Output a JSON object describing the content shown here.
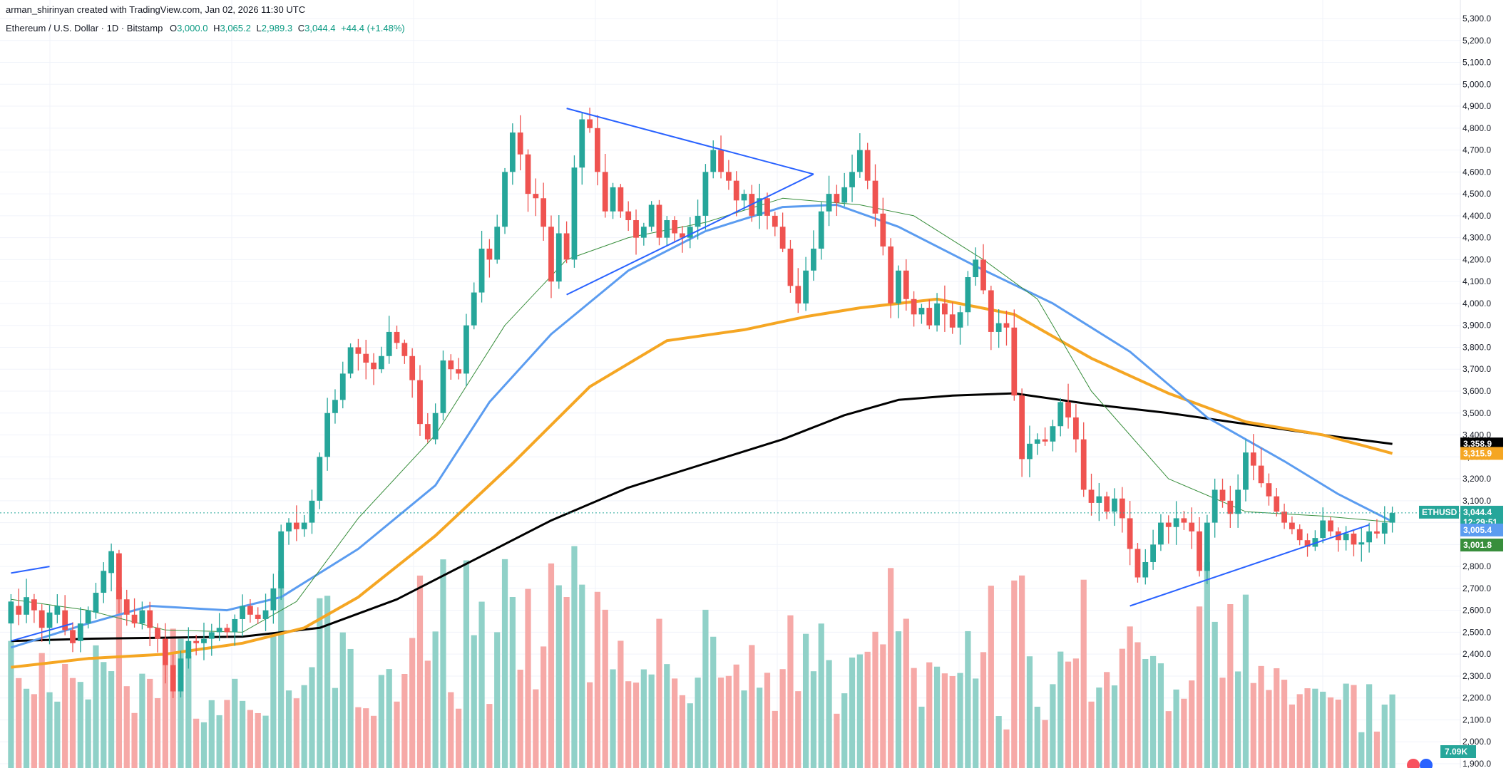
{
  "header": {
    "attribution": "arman_shirinyan created with TradingView.com, Jan 02, 2026 11:30 UTC",
    "symbol_line": "Ethereum / U.S. Dollar · 1D · Bitstamp",
    "o_label": "O",
    "o_value": "3,000.0",
    "h_label": "H",
    "h_value": "3,065.2",
    "l_label": "L",
    "l_value": "2,989.3",
    "c_label": "C",
    "c_value": "3,044.4",
    "change": "+44.4 (+1.48%)"
  },
  "colors": {
    "up": "#26a69a",
    "down": "#ef5350",
    "ma_fast": "#388e3c",
    "ma_50": "#5b9cf0",
    "ma_100": "#f5a623",
    "ma_200": "#000000",
    "trendline": "#2962ff",
    "grid": "#f0f3fa",
    "vol_up": "#90d1c8",
    "vol_down": "#f6a9a7"
  },
  "chart_data": {
    "type": "candlestick",
    "title": "Ethereum / U.S. Dollar · 1D · Bitstamp",
    "ylim": [
      1900,
      5300
    ],
    "y_ticks": [
      "1,900.0",
      "2,000.0",
      "2,100.0",
      "2,200.0",
      "2,300.0",
      "2,400.0",
      "2,500.0",
      "2,600.0",
      "2,700.0",
      "2,800.0",
      "2,900.0",
      "3,000.0",
      "3,100.0",
      "3,200.0",
      "3,300.0",
      "3,400.0",
      "3,500.0",
      "3,600.0",
      "3,700.0",
      "3,800.0",
      "3,900.0",
      "4,000.0",
      "4,100.0",
      "4,200.0",
      "4,300.0",
      "4,400.0",
      "4,500.0",
      "4,600.0",
      "4,700.0",
      "4,800.0",
      "4,900.0",
      "5,000.0",
      "5,100.0",
      "5,200.0",
      "5,300.0"
    ],
    "price_tags": [
      {
        "name": "ma-200-tag",
        "value": 3358.9,
        "label": "3,358.9",
        "color": "#000000"
      },
      {
        "name": "ma-100-tag",
        "value": 3315.9,
        "label": "3,315.9",
        "color": "#f5a623"
      },
      {
        "name": "last-price-tag",
        "value": 3044.4,
        "label": "ETHUSD",
        "sublabel": "3,044.4",
        "countdown": "12:29:51",
        "color": "#26a69a"
      },
      {
        "name": "ma-50-tag",
        "value": 3005.4,
        "label": "3,005.4",
        "color": "#5b9cf0"
      },
      {
        "name": "ma-fast-tag",
        "value": 3001.8,
        "label": "3,001.8",
        "color": "#388e3c"
      }
    ],
    "volume_label": "7.09K",
    "last_price": 3044.4,
    "ohlc_path": [
      [
        2540,
        2640
      ],
      [
        2620,
        2580
      ],
      [
        2580,
        2660
      ],
      [
        2650,
        2600
      ],
      [
        2600,
        2520
      ],
      [
        2520,
        2590
      ],
      [
        2580,
        2620
      ],
      [
        2600,
        2510
      ],
      [
        2510,
        2450
      ],
      [
        2460,
        2540
      ],
      [
        2540,
        2600
      ],
      [
        2590,
        2680
      ],
      [
        2680,
        2780
      ],
      [
        2770,
        2870
      ],
      [
        2860,
        2650
      ],
      [
        2650,
        2580
      ],
      [
        2580,
        2540
      ],
      [
        2540,
        2600
      ],
      [
        2600,
        2520
      ],
      [
        2520,
        2470
      ],
      [
        2470,
        2350
      ],
      [
        2350,
        2230
      ],
      [
        2230,
        2380
      ],
      [
        2380,
        2460
      ],
      [
        2460,
        2450
      ],
      [
        2450,
        2470
      ],
      [
        2470,
        2500
      ],
      [
        2500,
        2520
      ],
      [
        2520,
        2500
      ],
      [
        2500,
        2560
      ],
      [
        2560,
        2620
      ],
      [
        2620,
        2580
      ],
      [
        2580,
        2560
      ],
      [
        2560,
        2600
      ],
      [
        2600,
        2700
      ],
      [
        2700,
        2960
      ],
      [
        2960,
        3000
      ],
      [
        3000,
        2970
      ],
      [
        2970,
        3000
      ],
      [
        3000,
        3100
      ],
      [
        3100,
        3300
      ],
      [
        3300,
        3500
      ],
      [
        3500,
        3560
      ],
      [
        3560,
        3680
      ],
      [
        3680,
        3800
      ],
      [
        3800,
        3770
      ],
      [
        3770,
        3730
      ],
      [
        3730,
        3700
      ],
      [
        3700,
        3760
      ],
      [
        3760,
        3870
      ],
      [
        3870,
        3820
      ],
      [
        3820,
        3760
      ],
      [
        3760,
        3650
      ],
      [
        3650,
        3450
      ],
      [
        3450,
        3380
      ],
      [
        3380,
        3500
      ],
      [
        3500,
        3740
      ],
      [
        3740,
        3700
      ],
      [
        3700,
        3680
      ],
      [
        3680,
        3900
      ],
      [
        3900,
        4050
      ],
      [
        4050,
        4250
      ],
      [
        4250,
        4200
      ],
      [
        4200,
        4350
      ],
      [
        4350,
        4600
      ],
      [
        4600,
        4780
      ],
      [
        4780,
        4680
      ],
      [
        4680,
        4500
      ],
      [
        4500,
        4480
      ],
      [
        4480,
        4350
      ],
      [
        4350,
        4100
      ],
      [
        4100,
        4320
      ],
      [
        4320,
        4200
      ],
      [
        4200,
        4620
      ],
      [
        4620,
        4840
      ],
      [
        4840,
        4800
      ],
      [
        4800,
        4600
      ],
      [
        4600,
        4420
      ],
      [
        4420,
        4530
      ],
      [
        4530,
        4420
      ],
      [
        4420,
        4380
      ],
      [
        4380,
        4300
      ],
      [
        4300,
        4350
      ],
      [
        4350,
        4450
      ],
      [
        4450,
        4300
      ],
      [
        4300,
        4380
      ],
      [
        4380,
        4320
      ],
      [
        4320,
        4300
      ],
      [
        4300,
        4350
      ],
      [
        4350,
        4400
      ],
      [
        4400,
        4600
      ],
      [
        4600,
        4700
      ],
      [
        4700,
        4600
      ],
      [
        4600,
        4560
      ],
      [
        4560,
        4470
      ],
      [
        4470,
        4500
      ],
      [
        4500,
        4400
      ],
      [
        4400,
        4480
      ],
      [
        4480,
        4400
      ],
      [
        4400,
        4350
      ],
      [
        4350,
        4250
      ],
      [
        4250,
        4080
      ],
      [
        4080,
        4000
      ],
      [
        4000,
        4150
      ],
      [
        4150,
        4250
      ],
      [
        4250,
        4420
      ],
      [
        4420,
        4500
      ],
      [
        4500,
        4460
      ],
      [
        4460,
        4530
      ],
      [
        4530,
        4600
      ],
      [
        4600,
        4700
      ],
      [
        4700,
        4560
      ],
      [
        4560,
        4410
      ],
      [
        4410,
        4260
      ],
      [
        4260,
        4000
      ],
      [
        4000,
        4150
      ],
      [
        4150,
        4020
      ],
      [
        4020,
        3950
      ],
      [
        3950,
        3980
      ],
      [
        3980,
        3900
      ],
      [
        3900,
        4000
      ],
      [
        4000,
        3950
      ],
      [
        3950,
        3890
      ],
      [
        3890,
        3960
      ],
      [
        3960,
        4120
      ],
      [
        4120,
        4200
      ],
      [
        4200,
        4060
      ],
      [
        4060,
        3870
      ],
      [
        3870,
        3910
      ],
      [
        3910,
        3890
      ],
      [
        3890,
        3580
      ],
      [
        3580,
        3290
      ],
      [
        3290,
        3360
      ],
      [
        3360,
        3380
      ],
      [
        3380,
        3370
      ],
      [
        3370,
        3440
      ],
      [
        3440,
        3550
      ],
      [
        3550,
        3480
      ],
      [
        3480,
        3380
      ],
      [
        3380,
        3150
      ],
      [
        3150,
        3090
      ],
      [
        3090,
        3120
      ],
      [
        3120,
        3050
      ],
      [
        3050,
        3110
      ],
      [
        3110,
        3020
      ],
      [
        3020,
        2880
      ],
      [
        2880,
        2750
      ],
      [
        2750,
        2820
      ],
      [
        2820,
        2900
      ],
      [
        2900,
        3000
      ],
      [
        3000,
        2980
      ],
      [
        2980,
        3020
      ],
      [
        3020,
        3000
      ],
      [
        3000,
        2960
      ],
      [
        2960,
        2780
      ],
      [
        2780,
        3000
      ],
      [
        3000,
        3150
      ],
      [
        3150,
        3100
      ],
      [
        3100,
        3040
      ],
      [
        3040,
        3150
      ],
      [
        3150,
        3320
      ],
      [
        3320,
        3260
      ],
      [
        3260,
        3180
      ],
      [
        3180,
        3120
      ],
      [
        3120,
        3050
      ],
      [
        3050,
        3000
      ],
      [
        3000,
        2970
      ],
      [
        2970,
        2920
      ],
      [
        2920,
        2890
      ],
      [
        2890,
        2930
      ],
      [
        2930,
        3010
      ],
      [
        3010,
        2960
      ],
      [
        2960,
        2920
      ],
      [
        2920,
        2950
      ],
      [
        2950,
        2900
      ],
      [
        2900,
        2910
      ],
      [
        2910,
        2960
      ],
      [
        2960,
        2950
      ],
      [
        2950,
        3000
      ],
      [
        3000,
        3044
      ]
    ],
    "sma_fast": [
      [
        0,
        2650
      ],
      [
        10,
        2600
      ],
      [
        20,
        2510
      ],
      [
        30,
        2500
      ],
      [
        37,
        2640
      ],
      [
        45,
        3020
      ],
      [
        55,
        3400
      ],
      [
        64,
        3900
      ],
      [
        72,
        4200
      ],
      [
        80,
        4300
      ],
      [
        90,
        4370
      ],
      [
        100,
        4480
      ],
      [
        110,
        4450
      ],
      [
        117,
        4400
      ],
      [
        126,
        4200
      ],
      [
        133,
        4020
      ],
      [
        140,
        3600
      ],
      [
        150,
        3200
      ],
      [
        160,
        3050
      ],
      [
        170,
        3030
      ],
      [
        179,
        3002
      ]
    ],
    "sma_50": [
      [
        0,
        2430
      ],
      [
        10,
        2540
      ],
      [
        18,
        2620
      ],
      [
        28,
        2600
      ],
      [
        35,
        2660
      ],
      [
        45,
        2880
      ],
      [
        55,
        3170
      ],
      [
        62,
        3550
      ],
      [
        70,
        3860
      ],
      [
        80,
        4150
      ],
      [
        90,
        4330
      ],
      [
        100,
        4440
      ],
      [
        107,
        4450
      ],
      [
        115,
        4350
      ],
      [
        125,
        4170
      ],
      [
        135,
        4000
      ],
      [
        145,
        3780
      ],
      [
        155,
        3480
      ],
      [
        165,
        3280
      ],
      [
        172,
        3130
      ],
      [
        179,
        3005
      ]
    ],
    "sma_100": [
      [
        0,
        2340
      ],
      [
        10,
        2380
      ],
      [
        20,
        2400
      ],
      [
        30,
        2450
      ],
      [
        38,
        2520
      ],
      [
        45,
        2660
      ],
      [
        55,
        2940
      ],
      [
        65,
        3270
      ],
      [
        75,
        3620
      ],
      [
        85,
        3830
      ],
      [
        95,
        3880
      ],
      [
        103,
        3940
      ],
      [
        110,
        3980
      ],
      [
        120,
        4020
      ],
      [
        130,
        3950
      ],
      [
        140,
        3750
      ],
      [
        150,
        3590
      ],
      [
        160,
        3460
      ],
      [
        170,
        3400
      ],
      [
        179,
        3316
      ]
    ],
    "sma_200": [
      [
        0,
        2460
      ],
      [
        10,
        2470
      ],
      [
        20,
        2475
      ],
      [
        30,
        2480
      ],
      [
        40,
        2520
      ],
      [
        50,
        2650
      ],
      [
        60,
        2830
      ],
      [
        70,
        3010
      ],
      [
        80,
        3160
      ],
      [
        90,
        3270
      ],
      [
        100,
        3380
      ],
      [
        108,
        3490
      ],
      [
        115,
        3560
      ],
      [
        122,
        3580
      ],
      [
        130,
        3590
      ],
      [
        140,
        3540
      ],
      [
        150,
        3500
      ],
      [
        160,
        3450
      ],
      [
        170,
        3400
      ],
      [
        179,
        3359
      ]
    ],
    "trendlines": [
      {
        "name": "early-resistance",
        "from": [
          0,
          2770
        ],
        "to": [
          5,
          2800
        ]
      },
      {
        "name": "early-support",
        "from": [
          0,
          2460
        ],
        "to": [
          8,
          2540
        ]
      },
      {
        "name": "triangle-resistance",
        "from": [
          72,
          4890
        ],
        "to": [
          104,
          4590
        ]
      },
      {
        "name": "triangle-support",
        "from": [
          72,
          4040
        ],
        "to": [
          104,
          4590
        ]
      },
      {
        "name": "recent-support",
        "from": [
          145,
          2620
        ],
        "to": [
          176,
          2990
        ]
      }
    ]
  }
}
